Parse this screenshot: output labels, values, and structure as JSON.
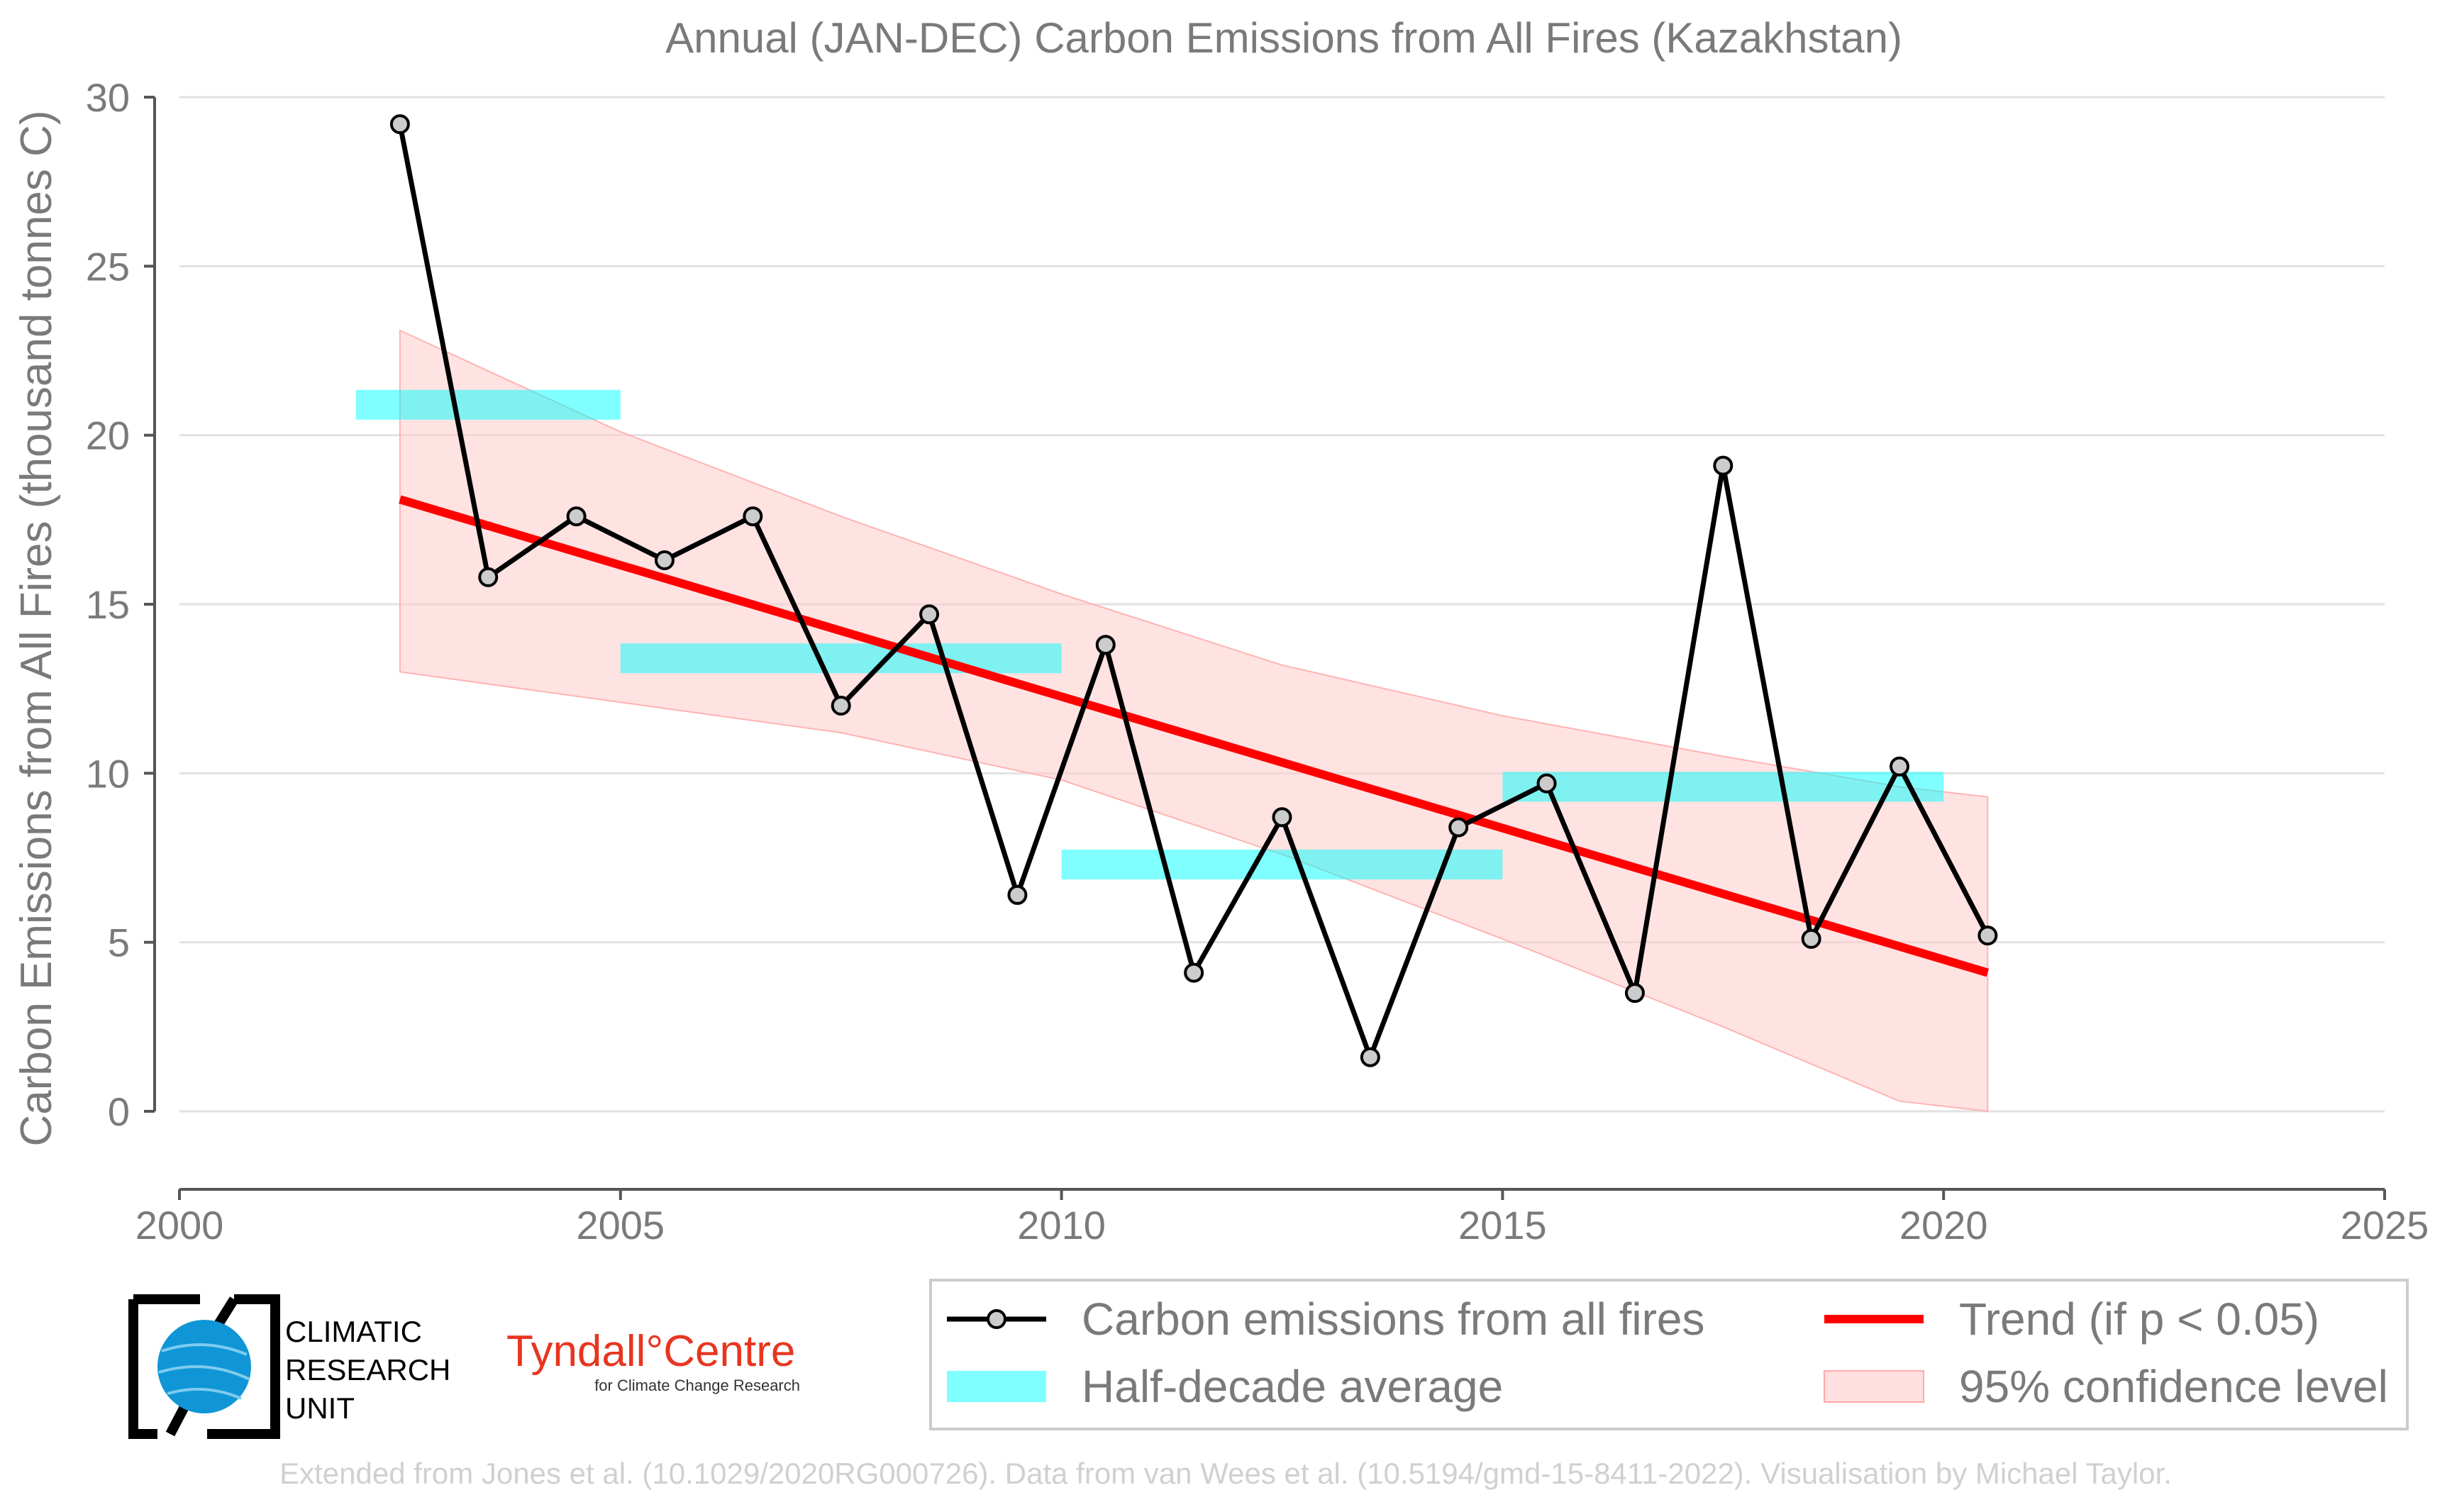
{
  "chart_data": {
    "type": "line",
    "title": "Annual (JAN-DEC) Carbon Emissions from All Fires (Kazakhstan)",
    "xlabel": "",
    "ylabel": "Carbon Emissions from All Fires (thousand tonnes C)",
    "xlim": [
      2000,
      2025
    ],
    "ylim": [
      0,
      30
    ],
    "x_ticks": [
      "2000",
      "2005",
      "2010",
      "2015",
      "2020",
      "2025"
    ],
    "y_ticks": [
      "0",
      "5",
      "10",
      "15",
      "20",
      "25",
      "30"
    ],
    "grid": "horizontal",
    "legend_position": "bottom-right",
    "series": [
      {
        "name": "Carbon emissions from all fires",
        "color": "#000000",
        "x": [
          2002.5,
          2003.5,
          2004.5,
          2005.5,
          2006.5,
          2007.5,
          2008.5,
          2009.5,
          2010.5,
          2011.5,
          2012.5,
          2013.5,
          2014.5,
          2015.5,
          2016.5,
          2017.5,
          2018.5,
          2019.5,
          2020.5
        ],
        "values": [
          29.2,
          15.8,
          17.6,
          16.3,
          17.6,
          12.0,
          14.7,
          6.4,
          13.8,
          4.1,
          8.7,
          1.6,
          8.4,
          9.7,
          3.5,
          19.1,
          5.1,
          10.2,
          5.2
        ]
      },
      {
        "name": "Half-decade average",
        "color": "#00ffff",
        "segments": [
          {
            "x_start": 2002,
            "x_end": 2005,
            "value": 20.9
          },
          {
            "x_start": 2005,
            "x_end": 2010,
            "value": 13.4
          },
          {
            "x_start": 2010,
            "x_end": 2015,
            "value": 7.3
          },
          {
            "x_start": 2015,
            "x_end": 2020,
            "value": 9.6
          }
        ]
      },
      {
        "name": "Trend (if p < 0.05)",
        "color": "#ff0000",
        "x": [
          2002.5,
          2020.5
        ],
        "values": [
          18.1,
          4.1
        ]
      },
      {
        "name": "95% confidence level",
        "color": "#ffcccc",
        "x": [
          2002.5,
          2005,
          2007.5,
          2010,
          2012.5,
          2015,
          2017.5,
          2019.5,
          2020.5
        ],
        "upper": [
          23.1,
          20.1,
          17.6,
          15.3,
          13.2,
          11.7,
          10.5,
          9.6,
          9.3
        ],
        "lower": [
          13.0,
          12.1,
          11.2,
          9.8,
          7.6,
          5.1,
          2.5,
          0.3,
          0.0
        ]
      }
    ]
  },
  "logos": {
    "cru_line1": "CLIMATIC",
    "cru_line2": "RESEARCH",
    "cru_line3": "UNIT",
    "tyndall_name": "Tyndall°Centre",
    "tyndall_sub": "for Climate Change Research"
  },
  "credit": "Extended from Jones et al. (10.1029/2020RG000726). Data from van Wees et al. (10.5194/gmd-15-8411-2022). Visualisation by Michael Taylor."
}
